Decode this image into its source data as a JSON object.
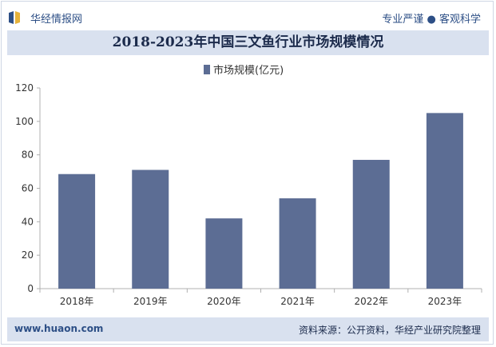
{
  "header": {
    "logo_text": "华经情报网",
    "slogan": "专业严谨 ● 客观科学"
  },
  "chart_data": {
    "type": "bar",
    "title": "2018-2023年中国三文鱼行业市场规模情况",
    "categories": [
      "2018年",
      "2019年",
      "2020年",
      "2021年",
      "2022年",
      "2023年"
    ],
    "series": [
      {
        "name": "市场规模(亿元)",
        "values": [
          68.5,
          71,
          42,
          54,
          77,
          105
        ],
        "color": "#5c6d94"
      }
    ],
    "ylim": [
      0,
      120
    ],
    "yticks": [
      "0",
      "20",
      "40",
      "60",
      "80",
      "100",
      "120"
    ],
    "grid": false,
    "legend": "top-center"
  },
  "footer": {
    "site": "www.huaon.com",
    "source": "资料来源：公开资料，华经产业研究院整理"
  },
  "colors": {
    "brand": "#2d4f86",
    "band": "#d9e1ef",
    "bar": "#5c6d94"
  }
}
